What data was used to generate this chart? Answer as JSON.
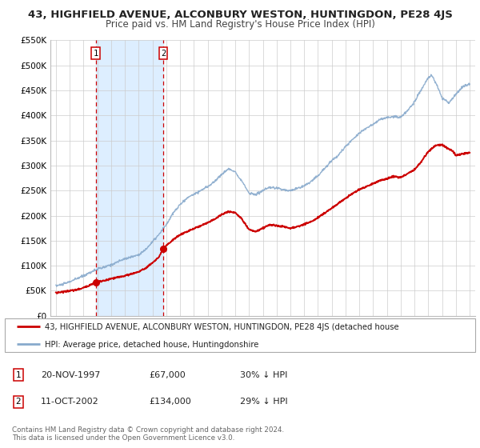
{
  "title": "43, HIGHFIELD AVENUE, ALCONBURY WESTON, HUNTINGDON, PE28 4JS",
  "subtitle": "Price paid vs. HM Land Registry's House Price Index (HPI)",
  "ylim": [
    0,
    550000
  ],
  "yticks": [
    0,
    50000,
    100000,
    150000,
    200000,
    250000,
    300000,
    350000,
    400000,
    450000,
    500000,
    550000
  ],
  "ytick_labels": [
    "£0",
    "£50K",
    "£100K",
    "£150K",
    "£200K",
    "£250K",
    "£300K",
    "£350K",
    "£400K",
    "£450K",
    "£500K",
    "£550K"
  ],
  "xlim_start": 1994.6,
  "xlim_end": 2025.4,
  "xticks": [
    1995,
    1996,
    1997,
    1998,
    1999,
    2000,
    2001,
    2002,
    2003,
    2004,
    2005,
    2006,
    2007,
    2008,
    2009,
    2010,
    2011,
    2012,
    2013,
    2014,
    2015,
    2016,
    2017,
    2018,
    2019,
    2020,
    2021,
    2022,
    2023,
    2024,
    2025
  ],
  "sale1_x": 1997.88,
  "sale1_y": 67000,
  "sale1_label": "1",
  "sale2_x": 2002.78,
  "sale2_y": 134000,
  "sale2_label": "2",
  "red_line_color": "#cc0000",
  "blue_line_color": "#88aacc",
  "shaded_color": "#ddeeff",
  "marker_color": "#cc0000",
  "legend_label_red": "43, HIGHFIELD AVENUE, ALCONBURY WESTON, HUNTINGDON, PE28 4JS (detached house",
  "legend_label_blue": "HPI: Average price, detached house, Huntingdonshire",
  "table_row1": [
    "1",
    "20-NOV-1997",
    "£67,000",
    "30% ↓ HPI"
  ],
  "table_row2": [
    "2",
    "11-OCT-2002",
    "£134,000",
    "29% ↓ HPI"
  ],
  "footer_line1": "Contains HM Land Registry data © Crown copyright and database right 2024.",
  "footer_line2": "This data is licensed under the Open Government Licence v3.0.",
  "key_points_hpi": [
    [
      1995.0,
      60000
    ],
    [
      1995.5,
      63000
    ],
    [
      1996.0,
      68000
    ],
    [
      1996.5,
      74000
    ],
    [
      1997.0,
      80000
    ],
    [
      1997.5,
      87000
    ],
    [
      1998.0,
      93000
    ],
    [
      1998.5,
      97000
    ],
    [
      1999.0,
      102000
    ],
    [
      1999.5,
      108000
    ],
    [
      2000.0,
      114000
    ],
    [
      2000.5,
      118000
    ],
    [
      2001.0,
      122000
    ],
    [
      2001.5,
      132000
    ],
    [
      2002.0,
      148000
    ],
    [
      2002.5,
      163000
    ],
    [
      2003.0,
      182000
    ],
    [
      2003.5,
      205000
    ],
    [
      2004.0,
      222000
    ],
    [
      2004.5,
      235000
    ],
    [
      2005.0,
      243000
    ],
    [
      2005.5,
      250000
    ],
    [
      2006.0,
      258000
    ],
    [
      2006.5,
      268000
    ],
    [
      2007.0,
      282000
    ],
    [
      2007.5,
      293000
    ],
    [
      2008.0,
      288000
    ],
    [
      2008.5,
      268000
    ],
    [
      2009.0,
      245000
    ],
    [
      2009.5,
      242000
    ],
    [
      2010.0,
      250000
    ],
    [
      2010.5,
      256000
    ],
    [
      2011.0,
      255000
    ],
    [
      2011.5,
      252000
    ],
    [
      2012.0,
      250000
    ],
    [
      2012.5,
      254000
    ],
    [
      2013.0,
      260000
    ],
    [
      2013.5,
      268000
    ],
    [
      2014.0,
      280000
    ],
    [
      2014.5,
      295000
    ],
    [
      2015.0,
      310000
    ],
    [
      2015.5,
      322000
    ],
    [
      2016.0,
      338000
    ],
    [
      2016.5,
      352000
    ],
    [
      2017.0,
      365000
    ],
    [
      2017.5,
      375000
    ],
    [
      2018.0,
      382000
    ],
    [
      2018.5,
      392000
    ],
    [
      2019.0,
      396000
    ],
    [
      2019.5,
      398000
    ],
    [
      2020.0,
      396000
    ],
    [
      2020.5,
      410000
    ],
    [
      2021.0,
      428000
    ],
    [
      2021.5,
      452000
    ],
    [
      2022.0,
      475000
    ],
    [
      2022.25,
      480000
    ],
    [
      2022.6,
      462000
    ],
    [
      2023.0,
      435000
    ],
    [
      2023.5,
      425000
    ],
    [
      2024.0,
      442000
    ],
    [
      2024.5,
      458000
    ],
    [
      2025.0,
      462000
    ]
  ],
  "key_points_red": [
    [
      1995.0,
      46000
    ],
    [
      1995.5,
      48000
    ],
    [
      1996.0,
      50000
    ],
    [
      1996.5,
      52000
    ],
    [
      1997.0,
      56000
    ],
    [
      1997.5,
      62000
    ],
    [
      1997.88,
      67000
    ],
    [
      1998.5,
      70000
    ],
    [
      1999.0,
      74000
    ],
    [
      1999.5,
      77000
    ],
    [
      2000.0,
      80000
    ],
    [
      2000.5,
      84000
    ],
    [
      2001.0,
      88000
    ],
    [
      2001.5,
      95000
    ],
    [
      2002.0,
      106000
    ],
    [
      2002.5,
      118000
    ],
    [
      2002.78,
      134000
    ],
    [
      2003.0,
      140000
    ],
    [
      2003.5,
      152000
    ],
    [
      2004.0,
      162000
    ],
    [
      2004.5,
      168000
    ],
    [
      2005.0,
      174000
    ],
    [
      2005.5,
      180000
    ],
    [
      2006.0,
      186000
    ],
    [
      2006.5,
      193000
    ],
    [
      2007.0,
      202000
    ],
    [
      2007.5,
      208000
    ],
    [
      2008.0,
      206000
    ],
    [
      2008.5,
      193000
    ],
    [
      2009.0,
      172000
    ],
    [
      2009.5,
      168000
    ],
    [
      2010.0,
      175000
    ],
    [
      2010.5,
      182000
    ],
    [
      2011.0,
      180000
    ],
    [
      2011.5,
      178000
    ],
    [
      2012.0,
      175000
    ],
    [
      2012.5,
      178000
    ],
    [
      2013.0,
      183000
    ],
    [
      2013.5,
      188000
    ],
    [
      2014.0,
      196000
    ],
    [
      2014.5,
      206000
    ],
    [
      2015.0,
      215000
    ],
    [
      2015.5,
      225000
    ],
    [
      2016.0,
      235000
    ],
    [
      2016.5,
      244000
    ],
    [
      2017.0,
      252000
    ],
    [
      2017.5,
      258000
    ],
    [
      2018.0,
      264000
    ],
    [
      2018.5,
      270000
    ],
    [
      2019.0,
      274000
    ],
    [
      2019.5,
      278000
    ],
    [
      2020.0,
      276000
    ],
    [
      2020.5,
      284000
    ],
    [
      2021.0,
      292000
    ],
    [
      2021.5,
      308000
    ],
    [
      2022.0,
      328000
    ],
    [
      2022.5,
      340000
    ],
    [
      2023.0,
      342000
    ],
    [
      2023.3,
      336000
    ],
    [
      2023.8,
      328000
    ],
    [
      2024.0,
      320000
    ],
    [
      2024.5,
      323000
    ],
    [
      2025.0,
      326000
    ]
  ]
}
